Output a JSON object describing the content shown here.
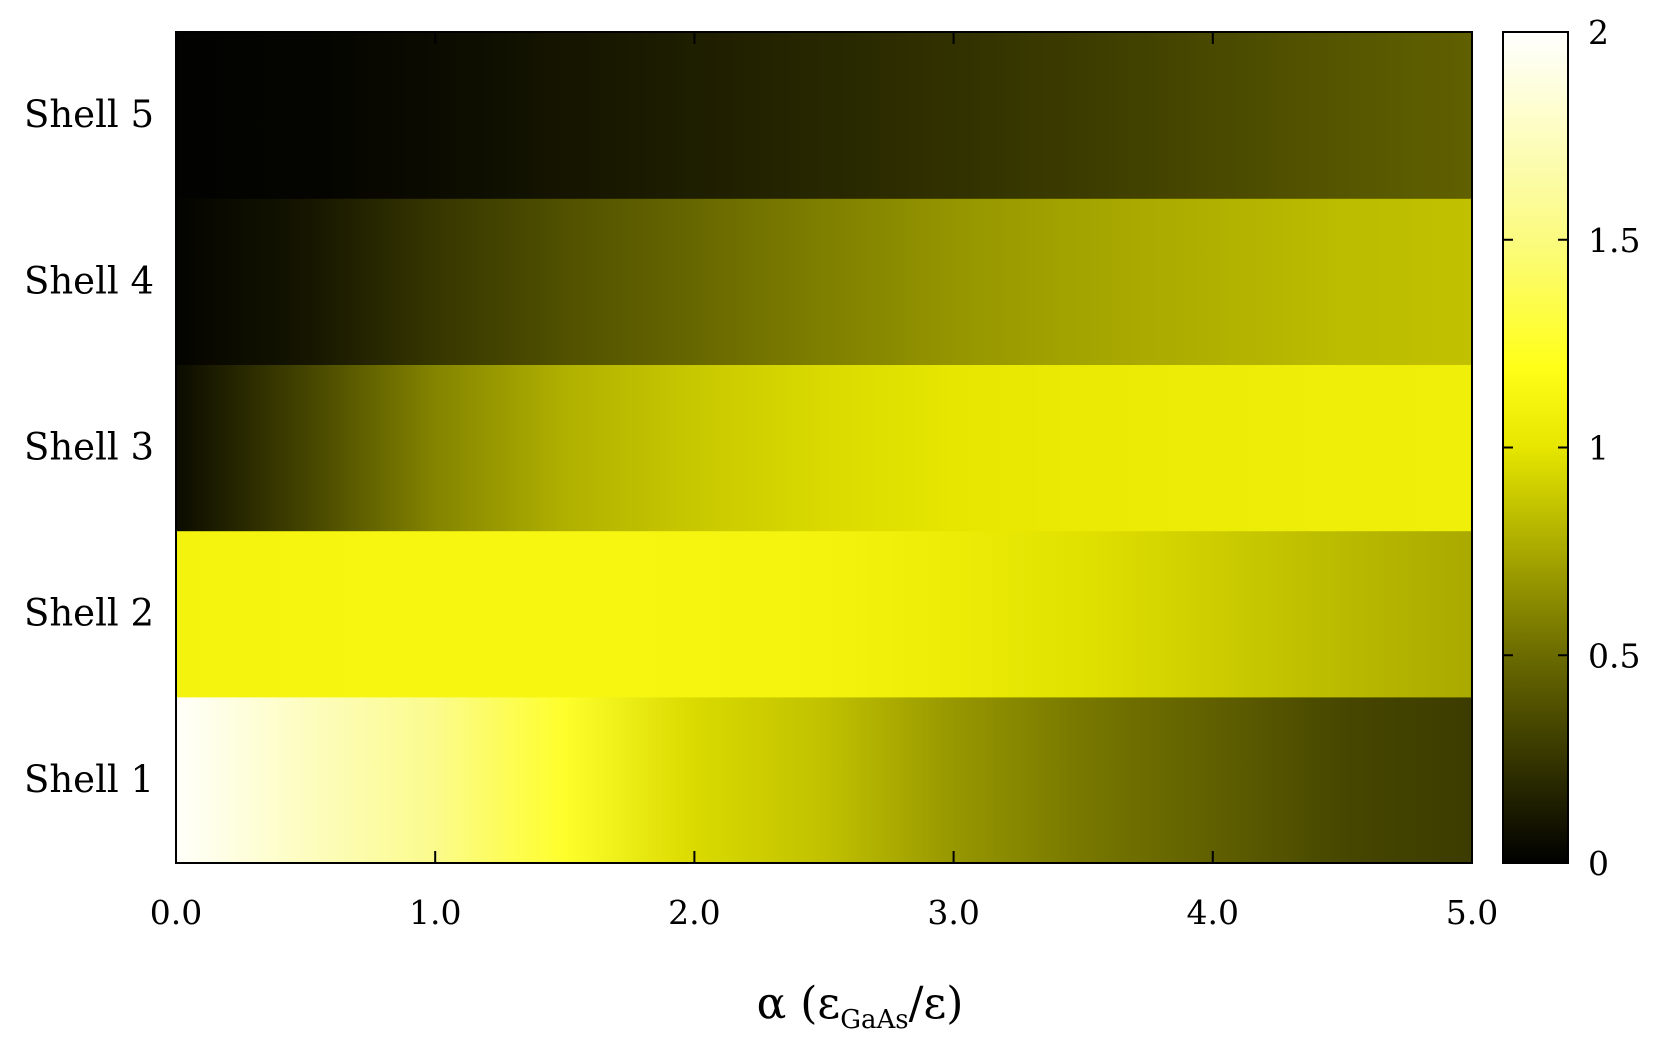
{
  "chart_data": {
    "type": "heatmap",
    "rows": [
      "Shell 1",
      "Shell 2",
      "Shell 3",
      "Shell 4",
      "Shell 5"
    ],
    "x": [
      0.0,
      0.5,
      1.0,
      1.5,
      2.0,
      2.5,
      3.0,
      3.5,
      4.0,
      4.5,
      5.0
    ],
    "values": [
      [
        1.98,
        1.75,
        1.55,
        1.25,
        0.95,
        0.85,
        0.68,
        0.55,
        0.45,
        0.33,
        0.28
      ],
      [
        1.1,
        1.12,
        1.13,
        1.13,
        1.12,
        1.1,
        1.05,
        0.98,
        0.9,
        0.82,
        0.75
      ],
      [
        0.05,
        0.32,
        0.6,
        0.78,
        0.88,
        0.95,
        1.0,
        1.03,
        1.05,
        1.06,
        1.07
      ],
      [
        0.02,
        0.1,
        0.25,
        0.38,
        0.48,
        0.58,
        0.67,
        0.73,
        0.78,
        0.83,
        0.85
      ],
      [
        0.01,
        0.02,
        0.05,
        0.1,
        0.14,
        0.18,
        0.23,
        0.28,
        0.34,
        0.4,
        0.45
      ]
    ],
    "xlim": [
      0.0,
      5.0
    ],
    "x_tick_labels": [
      "0.0",
      "1.0",
      "2.0",
      "3.0",
      "4.0",
      "5.0"
    ],
    "xlabel": {
      "main": "α  (ε",
      "subscript": "GaAs",
      "tail": "/ε)"
    },
    "colorbar": {
      "range": [
        0,
        2
      ],
      "tick_labels": [
        "0",
        "0.5",
        "1",
        "1.5",
        "2"
      ],
      "stops": [
        {
          "value": 0.0,
          "color": "#000000"
        },
        {
          "value": 0.5,
          "color": "#6b6b00"
        },
        {
          "value": 1.0,
          "color": "#e6e600"
        },
        {
          "value": 1.2,
          "color": "#ffff1a"
        },
        {
          "value": 1.5,
          "color": "#fbfb80"
        },
        {
          "value": 2.0,
          "color": "#ffffff"
        }
      ]
    }
  }
}
